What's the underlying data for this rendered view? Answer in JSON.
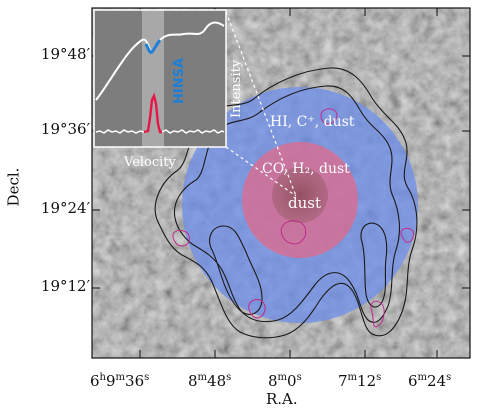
{
  "figure": {
    "y_axis_label": "Decl.",
    "x_axis_label": "R.A.",
    "y_ticks": [
      {
        "deg": "19",
        "min": "48"
      },
      {
        "deg": "19",
        "min": "36"
      },
      {
        "deg": "19",
        "min": "24"
      },
      {
        "deg": "19",
        "min": "12"
      }
    ],
    "x_ticks": [
      {
        "parts": [
          [
            "6",
            "h"
          ],
          [
            "9",
            "m"
          ],
          [
            "36",
            "s"
          ]
        ]
      },
      {
        "parts": [
          [
            "8",
            "m"
          ],
          [
            "48",
            "s"
          ]
        ]
      },
      {
        "parts": [
          [
            "8",
            "m"
          ],
          [
            "0",
            "s"
          ]
        ]
      },
      {
        "parts": [
          [
            "7",
            "m"
          ],
          [
            "12",
            "s"
          ]
        ]
      },
      {
        "parts": [
          [
            "6",
            "m"
          ],
          [
            "24",
            "s"
          ]
        ]
      }
    ],
    "zone_labels": {
      "outer": "HI, C⁺, dust",
      "middle": "CO, H₂, dust",
      "core": "dust"
    },
    "inset": {
      "x_label": "Velocity",
      "y_label": "Intensity",
      "feature_label": "HINSA"
    },
    "colors": {
      "outer_zone": "#6f8ee8",
      "middle_zone": "#e06a8a",
      "core_zone": "#a0606e",
      "hinsa_line": "#1e7fd8",
      "emission_line": "#e8154a",
      "contours": "#1a1a1a",
      "magenta_contours": "#c02a8c"
    }
  }
}
